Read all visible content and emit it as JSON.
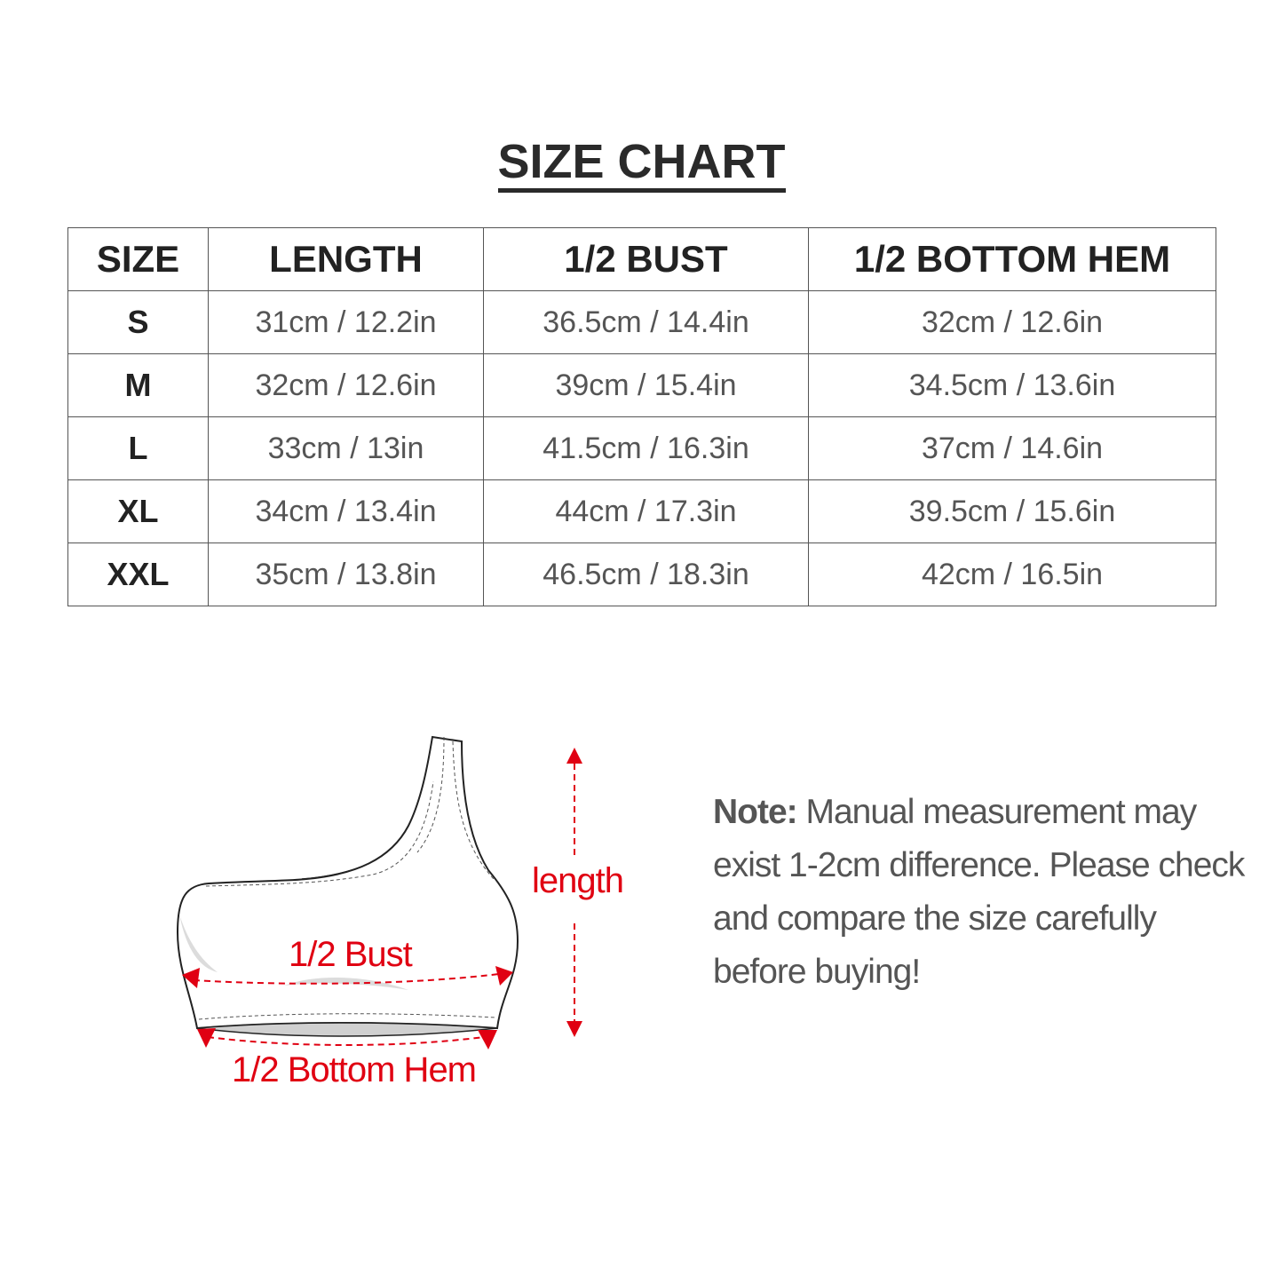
{
  "title": "SIZE CHART",
  "table": {
    "headers": [
      "SIZE",
      "LENGTH",
      "1/2 BUST",
      "1/2 BOTTOM HEM"
    ],
    "rows": [
      [
        "S",
        "31cm / 12.2in",
        "36.5cm / 14.4in",
        "32cm / 12.6in"
      ],
      [
        "M",
        "32cm / 12.6in",
        "39cm / 15.4in",
        "34.5cm / 13.6in"
      ],
      [
        "L",
        "33cm / 13in",
        "41.5cm / 16.3in",
        "37cm / 14.6in"
      ],
      [
        "XL",
        "34cm / 13.4in",
        "44cm / 17.3in",
        "39.5cm / 15.6in"
      ],
      [
        "XXL",
        "35cm / 13.8in",
        "46.5cm / 18.3in",
        "42cm / 16.5in"
      ]
    ]
  },
  "diagram": {
    "labels": {
      "length": "length",
      "bust": "1/2 Bust",
      "hem": "1/2 Bottom Hem"
    },
    "accent_color": "#e00012"
  },
  "note": {
    "label": "Note:",
    "text": " Manual measurement may exist 1-2cm difference. Please check and compare the size carefully before buying!"
  }
}
